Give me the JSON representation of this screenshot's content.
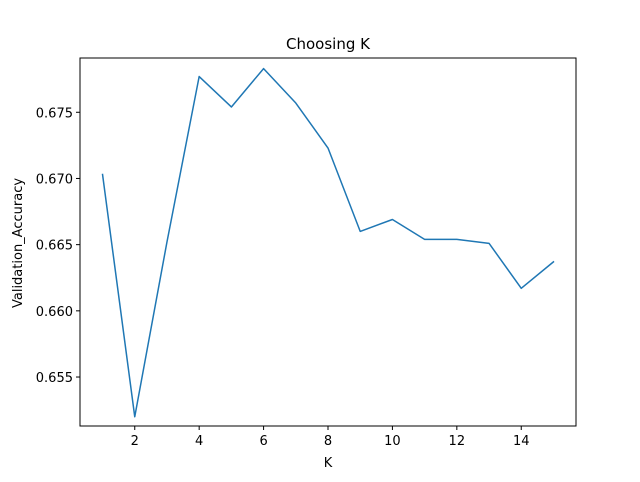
{
  "chart_data": {
    "type": "line",
    "title": "Choosing K",
    "xlabel": "K",
    "ylabel": "Validation_Accuracy",
    "xlim": [
      0.3,
      15.7
    ],
    "ylim": [
      0.6513,
      0.6791
    ],
    "xticks": [
      2,
      4,
      6,
      8,
      10,
      12,
      14
    ],
    "yticks": [
      0.655,
      0.66,
      0.665,
      0.67,
      0.675
    ],
    "xtick_labels": [
      "2",
      "4",
      "6",
      "8",
      "10",
      "12",
      "14"
    ],
    "ytick_labels": [
      "0.655",
      "0.660",
      "0.665",
      "0.670",
      "0.675"
    ],
    "grid": false,
    "legend": "none",
    "series": [
      {
        "color": "#1f77b4",
        "x": [
          1,
          2,
          3,
          4,
          5,
          6,
          7,
          8,
          9,
          10,
          11,
          12,
          13,
          14,
          15
        ],
        "y": [
          0.6703,
          0.652,
          0.6652,
          0.6777,
          0.6754,
          0.6783,
          0.6757,
          0.6723,
          0.666,
          0.6669,
          0.6654,
          0.6654,
          0.6651,
          0.6617,
          0.6637
        ]
      }
    ]
  }
}
